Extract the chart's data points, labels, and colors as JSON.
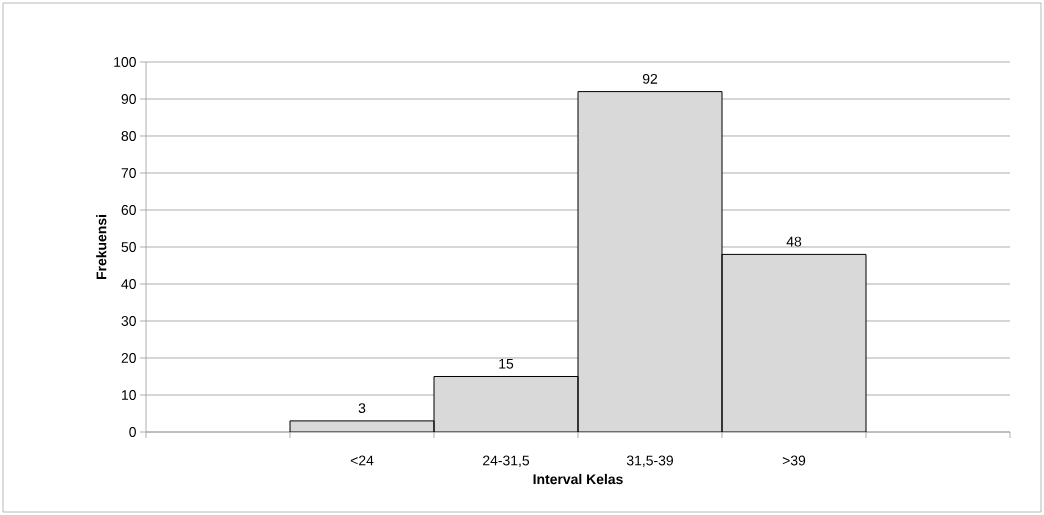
{
  "chart_data": {
    "type": "bar",
    "xlabel": "Interval Kelas",
    "ylabel": "Frekuensi",
    "categories": [
      null,
      "<24",
      "24-31,5",
      "31,5-39",
      ">39",
      null
    ],
    "values": [
      null,
      3,
      15,
      92,
      48,
      null
    ],
    "color": "#d9d9d9",
    "ylim": [
      0,
      100
    ],
    "yticks": [
      0,
      10,
      20,
      30,
      40,
      50,
      60,
      70,
      80,
      90,
      100
    ],
    "grid": "y",
    "data_labels": true
  }
}
